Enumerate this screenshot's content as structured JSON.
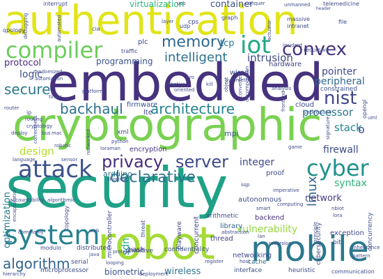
{
  "words": [
    {
      "text": "authentication",
      "color": "#e2e418",
      "orientation": "horizontal"
    },
    {
      "text": "embedded",
      "color": "#46327e",
      "orientation": "horizontal"
    },
    {
      "text": "cryptographic",
      "color": "#7ad151",
      "orientation": "horizontal"
    },
    {
      "text": "security",
      "color": "#1fa187",
      "orientation": "horizontal"
    },
    {
      "text": "robot",
      "color": "#a5db36",
      "orientation": "horizontal"
    },
    {
      "text": "mobile",
      "color": "#2a788e",
      "orientation": "horizontal"
    },
    {
      "text": "compiler",
      "color": "#6ccd5a",
      "orientation": "horizontal"
    },
    {
      "text": "iot",
      "color": "#22a884",
      "orientation": "horizontal"
    },
    {
      "text": "convex",
      "color": "#46327e",
      "orientation": "horizontal"
    },
    {
      "text": "memory",
      "color": "#306a8e",
      "orientation": "horizontal"
    },
    {
      "text": "system",
      "color": "#26828e",
      "orientation": "horizontal"
    },
    {
      "text": "attack",
      "color": "#3b528b",
      "orientation": "horizontal"
    },
    {
      "text": "cyber",
      "color": "#21918c",
      "orientation": "horizontal"
    },
    {
      "text": "privacy",
      "color": "#472d7b",
      "orientation": "horizontal"
    },
    {
      "text": "server",
      "color": "#3e4a89",
      "orientation": "horizontal"
    },
    {
      "text": "declarative",
      "color": "#2c728e",
      "orientation": "horizontal"
    },
    {
      "text": "architecture",
      "color": "#25838e",
      "orientation": "horizontal"
    },
    {
      "text": "nist",
      "color": "#404688",
      "orientation": "horizontal"
    },
    {
      "text": "intelligent",
      "color": "#2c728e",
      "orientation": "horizontal"
    },
    {
      "text": "secure",
      "color": "#2a788e",
      "orientation": "horizontal"
    },
    {
      "text": "backhaul",
      "color": "#2c728e",
      "orientation": "horizontal"
    },
    {
      "text": "algorithm",
      "color": "#33638d",
      "orientation": "horizontal"
    },
    {
      "text": "container",
      "color": "#3b528b",
      "orientation": "horizontal"
    },
    {
      "text": "virtualization",
      "color": "#2fb47c",
      "orientation": "horizontal"
    },
    {
      "text": "programming",
      "color": "#3b528b",
      "orientation": "horizontal"
    },
    {
      "text": "protocol",
      "color": "#472d7b",
      "orientation": "horizontal"
    },
    {
      "text": "logic",
      "color": "#3b528b",
      "orientation": "horizontal"
    },
    {
      "text": "tcp",
      "color": "#2a788e",
      "orientation": "horizontal"
    },
    {
      "text": "intrusion",
      "color": "#3e4a89",
      "orientation": "horizontal"
    },
    {
      "text": "pointer",
      "color": "#3e4a89",
      "orientation": "horizontal"
    },
    {
      "text": "peripheral",
      "color": "#31688e",
      "orientation": "horizontal"
    },
    {
      "text": "processor",
      "color": "#2a788e",
      "orientation": "horizontal"
    },
    {
      "text": "stack",
      "color": "#25838e",
      "orientation": "horizontal"
    },
    {
      "text": "firewall",
      "color": "#3e4a89",
      "orientation": "horizontal"
    },
    {
      "text": "syntax",
      "color": "#2fb47c",
      "orientation": "horizontal"
    },
    {
      "text": "linux",
      "color": "#33638d",
      "orientation": "vertical"
    },
    {
      "text": "network",
      "color": "#443a83",
      "orientation": "horizontal"
    },
    {
      "text": "integer",
      "color": "#3e4a89",
      "orientation": "horizontal"
    },
    {
      "text": "design",
      "color": "#b5de2b",
      "orientation": "horizontal"
    },
    {
      "text": "vulnerability",
      "color": "#95d840",
      "orientation": "horizontal"
    },
    {
      "text": "wireless",
      "color": "#2c728e",
      "orientation": "horizontal"
    },
    {
      "text": "biometric",
      "color": "#3b528b",
      "orientation": "horizontal"
    },
    {
      "text": "optimization",
      "color": "#2a788e",
      "orientation": "vertical"
    },
    {
      "text": "sdn",
      "color": "#22a884",
      "orientation": "vertical"
    },
    {
      "text": "hardware",
      "color": "#414487",
      "orientation": "horizontal"
    },
    {
      "text": "constrained",
      "color": "#3b528b",
      "orientation": "horizontal"
    },
    {
      "text": "cloud",
      "color": "#3e4a89",
      "orientation": "horizontal"
    },
    {
      "text": "encryption",
      "color": "#46327e",
      "orientation": "horizontal"
    },
    {
      "text": "arduino",
      "color": "#2c728e",
      "orientation": "horizontal"
    },
    {
      "text": "mpi",
      "color": "#3b528b",
      "orientation": "horizontal"
    },
    {
      "text": "firmware",
      "color": "#3b528b",
      "orientation": "horizontal"
    },
    {
      "text": "lte",
      "color": "#3e4a89",
      "orientation": "horizontal"
    },
    {
      "text": "thread",
      "color": "#414487",
      "orientation": "horizontal"
    },
    {
      "text": "library",
      "color": "#33638d",
      "orientation": "horizontal"
    },
    {
      "text": "backend",
      "color": "#46327e",
      "orientation": "horizontal"
    },
    {
      "text": "hash",
      "color": "#46327e",
      "orientation": "horizontal"
    },
    {
      "text": "primitive",
      "color": "#3e4a89",
      "orientation": "horizontal"
    },
    {
      "text": "distributed",
      "color": "#3e4a89",
      "orientation": "horizontal"
    },
    {
      "text": "confidentiality",
      "color": "#3b528b",
      "orientation": "horizontal"
    },
    {
      "text": "networking",
      "color": "#3e4a89",
      "orientation": "horizontal"
    },
    {
      "text": "exception",
      "color": "#3e4a89",
      "orientation": "horizontal"
    },
    {
      "text": "cache",
      "color": "#31688e",
      "orientation": "horizontal"
    },
    {
      "text": "serial",
      "color": "#3e4a89",
      "orientation": "horizontal"
    },
    {
      "text": "microprocessor",
      "color": "#3e4a89",
      "orientation": "horizontal"
    },
    {
      "text": "heuristic",
      "color": "#3e4a89",
      "orientation": "horizontal"
    },
    {
      "text": "interface",
      "color": "#3e4a89",
      "orientation": "horizontal"
    },
    {
      "text": "communication",
      "color": "#3e4a89",
      "orientation": "horizontal"
    },
    {
      "text": "wired",
      "color": "#3e4a89",
      "orientation": "horizontal"
    },
    {
      "text": "interrupt",
      "color": "#3e4a89",
      "orientation": "horizontal"
    },
    {
      "text": "plc",
      "color": "#3e4a89",
      "orientation": "horizontal"
    },
    {
      "text": "xml",
      "color": "#3e4a89",
      "orientation": "horizontal"
    },
    {
      "text": "arithmetic",
      "color": "#3e4a89",
      "orientation": "horizontal"
    },
    {
      "text": "autonomous",
      "color": "#3e4a89",
      "orientation": "horizontal"
    },
    {
      "text": "proof",
      "color": "#3e4a89",
      "orientation": "horizontal"
    },
    {
      "text": "concurrent",
      "color": "#3e4a89",
      "orientation": "vertical"
    },
    {
      "text": "playware",
      "color": "#3e4a89",
      "orientation": "vertical"
    },
    {
      "text": "microcontroller",
      "color": "#3e4a89",
      "orientation": "vertical"
    },
    {
      "text": "cybersecurity",
      "color": "#3e4a89",
      "orientation": "vertical"
    },
    {
      "text": "concurrency",
      "color": "#3e4a89",
      "orientation": "vertical"
    },
    {
      "text": "telemedicine",
      "color": "#3e4a89",
      "orientation": "horizontal"
    },
    {
      "text": "recursive",
      "color": "#3e4a89",
      "orientation": "horizontal"
    },
    {
      "text": "massive",
      "color": "#3e4a89",
      "orientation": "horizontal"
    },
    {
      "text": "intranet",
      "color": "#3e4a89",
      "orientation": "horizontal"
    },
    {
      "text": "unmanned",
      "color": "#3e4a89",
      "orientation": "horizontal"
    },
    {
      "text": "header",
      "color": "#3e4a89",
      "orientation": "horizontal"
    },
    {
      "text": "file",
      "color": "#3e4a89",
      "orientation": "horizontal"
    },
    {
      "text": "conquer",
      "color": "#3e4a89",
      "orientation": "horizontal"
    },
    {
      "text": "usb",
      "color": "#3e4a89",
      "orientation": "horizontal"
    },
    {
      "text": "graph",
      "color": "#3e4a89",
      "orientation": "horizontal"
    },
    {
      "text": "cps",
      "color": "#3e4a89",
      "orientation": "horizontal"
    },
    {
      "text": "cia",
      "color": "#3e4a89",
      "orientation": "horizontal"
    },
    {
      "text": "udp",
      "color": "#3e4a89",
      "orientation": "horizontal"
    },
    {
      "text": "incident",
      "color": "#3e4a89",
      "orientation": "horizontal"
    },
    {
      "text": "traffic",
      "color": "#3e4a89",
      "orientation": "horizontal"
    },
    {
      "text": "qpology",
      "color": "#3e4a89",
      "orientation": "horizontal"
    },
    {
      "text": "debugging",
      "color": "#3e4a89",
      "orientation": "vertical"
    },
    {
      "text": "automated",
      "color": "#3e4a89",
      "orientation": "vertical"
    },
    {
      "text": "randomized",
      "color": "#3e4a89",
      "orientation": "horizontal"
    },
    {
      "text": "automation",
      "color": "#3e4a89",
      "orientation": "horizontal"
    },
    {
      "text": "robotics",
      "color": "#3e4a89",
      "orientation": "horizontal"
    },
    {
      "text": "symmetric",
      "color": "#3e4a89",
      "orientation": "horizontal"
    },
    {
      "text": "kill",
      "color": "#3e4a89",
      "orientation": "horizontal"
    },
    {
      "text": "oriented",
      "color": "#3e4a89",
      "orientation": "horizontal"
    },
    {
      "text": "object",
      "color": "#3e4a89",
      "orientation": "vertical"
    },
    {
      "text": "converter",
      "color": "#3e4a89",
      "orientation": "vertical"
    },
    {
      "text": "decomposition",
      "color": "#3e4a89",
      "orientation": "vertical"
    },
    {
      "text": "analysis",
      "color": "#3e4a89",
      "orientation": "horizontal"
    },
    {
      "text": "frontend",
      "color": "#3e4a89",
      "orientation": "vertical"
    },
    {
      "text": "understand",
      "color": "#3e4a89",
      "orientation": "horizontal"
    },
    {
      "text": "timer",
      "color": "#3e4a89",
      "orientation": "horizontal"
    },
    {
      "text": "platform",
      "color": "#3e4a89",
      "orientation": "horizontal"
    },
    {
      "text": "router",
      "color": "#3e4a89",
      "orientation": "horizontal"
    },
    {
      "text": "routing",
      "color": "#3e4a89",
      "orientation": "horizontal"
    },
    {
      "text": "cryptology",
      "color": "#3e4a89",
      "orientation": "horizontal"
    },
    {
      "text": "bus",
      "color": "#3e4a89",
      "orientation": "horizontal"
    },
    {
      "text": "mac",
      "color": "#3e4a89",
      "orientation": "horizontal"
    },
    {
      "text": "deploy",
      "color": "#3e4a89",
      "orientation": "horizontal"
    },
    {
      "text": "correctness",
      "color": "#3e4a89",
      "orientation": "vertical"
    },
    {
      "text": "python",
      "color": "#3e4a89",
      "orientation": "horizontal"
    },
    {
      "text": "networked",
      "color": "#3e4a89",
      "orientation": "vertical"
    },
    {
      "text": "shortest",
      "color": "#3e4a89",
      "orientation": "horizontal"
    },
    {
      "text": "loraman",
      "color": "#3e4a89",
      "orientation": "horizontal"
    },
    {
      "text": "sensor",
      "color": "#3e4a89",
      "orientation": "horizontal"
    },
    {
      "text": "language",
      "color": "#3e4a89",
      "orientation": "horizontal"
    },
    {
      "text": "accountability",
      "color": "#3e4a89",
      "orientation": "horizontal"
    },
    {
      "text": "algorithmic",
      "color": "#3e4a89",
      "orientation": "horizontal"
    },
    {
      "text": "encapsulation",
      "color": "#3e4a89",
      "orientation": "vertical"
    },
    {
      "text": "topology",
      "color": "#3e4a89",
      "orientation": "vertical"
    },
    {
      "text": "commonly",
      "color": "#3e4a89",
      "orientation": "horizontal"
    },
    {
      "text": "modulo",
      "color": "#3e4a89",
      "orientation": "horizontal"
    },
    {
      "text": "web",
      "color": "#3e4a89",
      "orientation": "horizontal"
    },
    {
      "text": "java",
      "color": "#3e4a89",
      "orientation": "horizontal"
    },
    {
      "text": "protein",
      "color": "#3e4a89",
      "orientation": "horizontal"
    },
    {
      "text": "looping",
      "color": "#3e4a89",
      "orientation": "horizontal"
    },
    {
      "text": "deployment",
      "color": "#3e4a89",
      "orientation": "horizontal"
    },
    {
      "text": "hierarchy",
      "color": "#3e4a89",
      "orientation": "horizontal"
    },
    {
      "text": "imperative",
      "color": "#3e4a89",
      "orientation": "horizontal"
    },
    {
      "text": "sqp",
      "color": "#3e4a89",
      "orientation": "horizontal"
    },
    {
      "text": "smart",
      "color": "#3e4a89",
      "orientation": "horizontal"
    },
    {
      "text": "computing",
      "color": "#3e4a89",
      "orientation": "horizontal"
    },
    {
      "text": "abstraction",
      "color": "#3e4a89",
      "orientation": "horizontal"
    },
    {
      "text": "lan",
      "color": "#3e4a89",
      "orientation": "horizontal"
    },
    {
      "text": "register",
      "color": "#3e4a89",
      "orientation": "horizontal"
    },
    {
      "text": "recursion",
      "color": "#3e4a89",
      "orientation": "horizontal"
    },
    {
      "text": "host",
      "color": "#3e4a89",
      "orientation": "horizontal"
    },
    {
      "text": "bit",
      "color": "#3e4a89",
      "orientation": "horizontal"
    },
    {
      "text": "nbiot",
      "color": "#3e4a89",
      "orientation": "horizontal"
    },
    {
      "text": "lora",
      "color": "#3e4a89",
      "orientation": "horizontal"
    },
    {
      "text": "game",
      "color": "#3e4a89",
      "orientation": "horizontal"
    },
    {
      "text": "uml",
      "color": "#3e4a89",
      "orientation": "horizontal"
    },
    {
      "text": "opengl",
      "color": "#3e4a89",
      "orientation": "vertical"
    },
    {
      "text": "ip",
      "color": "#3e4a89",
      "orientation": "horizontal"
    },
    {
      "text": "signature",
      "color": "#3e4a89",
      "orientation": "vertical"
    },
    {
      "text": "robotic",
      "color": "#3e4a89",
      "orientation": "horizontal"
    },
    {
      "text": "ro",
      "color": "#3e4a89",
      "orientation": "horizontal"
    },
    {
      "text": "layer",
      "color": "#3e4a89",
      "orientation": "horizontal"
    },
    {
      "text": "principle",
      "color": "#3e4a89",
      "orientation": "vertical"
    },
    {
      "text": "pattern",
      "color": "#3e4a89",
      "orientation": "horizontal"
    },
    {
      "text": "inheritance",
      "color": "#3e4a89",
      "orientation": "horizontal"
    },
    {
      "text": "threat",
      "color": "#3e4a89",
      "orientation": "vertical"
    },
    {
      "text": "actuator",
      "color": "#3e4a89",
      "orientation": "vertical"
    },
    {
      "text": "o",
      "color": "#3e4a89",
      "orientation": "horizontal"
    }
  ]
}
